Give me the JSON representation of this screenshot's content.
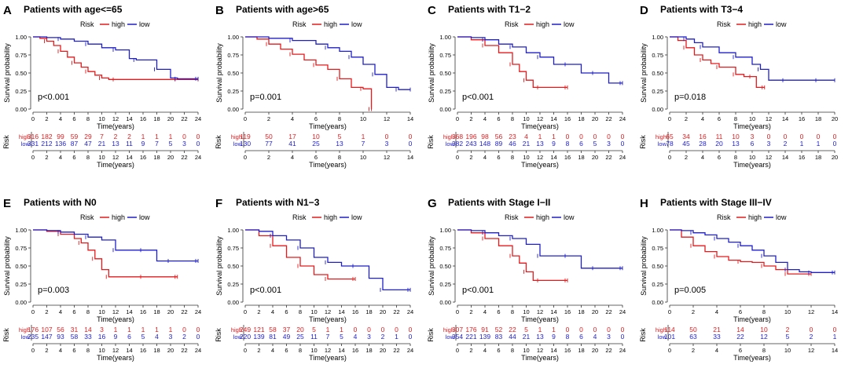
{
  "colors": {
    "high": "#e41a1c",
    "low": "#1f1fc8",
    "axis": "#333333"
  },
  "legend": {
    "title": "Risk",
    "high": "high",
    "low": "low"
  },
  "risk_label": "Risk",
  "chart_data": [
    {
      "id": "A",
      "type": "line",
      "title": "Patients with age<=65",
      "xlabel": "Time(years)",
      "ylabel": "Survival probability",
      "xlim": [
        0,
        24
      ],
      "xticks": [
        0,
        2,
        4,
        6,
        8,
        10,
        12,
        14,
        16,
        18,
        20,
        22,
        24
      ],
      "ylim": [
        0,
        1
      ],
      "yticks": [
        "0.00",
        "0.25",
        "0.50",
        "0.75",
        "1.00"
      ],
      "pvalue": "p<0.001",
      "series": [
        {
          "name": "high",
          "x": [
            0,
            1,
            2,
            3,
            4,
            5,
            6,
            7,
            8,
            9,
            10,
            11,
            12,
            20,
            21,
            24
          ],
          "y": [
            1,
            0.98,
            0.94,
            0.88,
            0.8,
            0.72,
            0.64,
            0.58,
            0.52,
            0.47,
            0.43,
            0.41,
            0.41,
            0.41,
            0.41,
            0.41
          ]
        },
        {
          "name": "low",
          "x": [
            0,
            2,
            4,
            6,
            8,
            10,
            12,
            14,
            15,
            17,
            18,
            20,
            21,
            22,
            24
          ],
          "y": [
            1,
            0.99,
            0.97,
            0.94,
            0.9,
            0.85,
            0.82,
            0.7,
            0.68,
            0.68,
            0.55,
            0.43,
            0.42,
            0.42,
            0.42
          ]
        }
      ],
      "risk_table": {
        "high": [
          "316",
          "182",
          "99",
          "59",
          "29",
          "7",
          "2",
          "2",
          "1",
          "1",
          "1",
          "0",
          "0"
        ],
        "low": [
          "331",
          "212",
          "136",
          "87",
          "47",
          "21",
          "13",
          "11",
          "9",
          "7",
          "5",
          "3",
          "0"
        ]
      }
    },
    {
      "id": "B",
      "type": "line",
      "title": "Patients with age>65",
      "xlabel": "Time(years)",
      "ylabel": "Survival probability",
      "xlim": [
        0,
        14
      ],
      "xticks": [
        0,
        2,
        4,
        6,
        8,
        10,
        12,
        14
      ],
      "ylim": [
        0,
        1
      ],
      "yticks": [
        "0.00",
        "0.25",
        "0.50",
        "0.75",
        "1.00"
      ],
      "pvalue": "p=0.001",
      "series": [
        {
          "name": "high",
          "x": [
            0,
            1,
            2,
            3,
            4,
            5,
            6,
            7,
            8,
            9,
            10,
            10.6,
            10.7
          ],
          "y": [
            1,
            0.97,
            0.9,
            0.83,
            0.76,
            0.68,
            0.61,
            0.55,
            0.42,
            0.3,
            0.28,
            0.28,
            0.0
          ]
        },
        {
          "name": "low",
          "x": [
            0,
            2,
            4,
            6,
            7,
            8,
            9,
            10,
            11,
            12,
            13,
            14
          ],
          "y": [
            1,
            0.98,
            0.95,
            0.9,
            0.85,
            0.8,
            0.72,
            0.62,
            0.48,
            0.3,
            0.27,
            0.27
          ]
        }
      ],
      "risk_table": {
        "high": [
          "119",
          "50",
          "17",
          "10",
          "5",
          "1",
          "0",
          "0"
        ],
        "low": [
          "130",
          "77",
          "41",
          "25",
          "13",
          "7",
          "3",
          "0"
        ]
      }
    },
    {
      "id": "C",
      "type": "line",
      "title": "Patients with T1−2",
      "xlabel": "Time(years)",
      "ylabel": "Survival probability",
      "xlim": [
        0,
        24
      ],
      "xticks": [
        0,
        2,
        4,
        6,
        8,
        10,
        12,
        14,
        16,
        18,
        20,
        22,
        24
      ],
      "ylim": [
        0,
        1
      ],
      "yticks": [
        "0.00",
        "0.25",
        "0.50",
        "0.75",
        "1.00"
      ],
      "pvalue": "p<0.001",
      "series": [
        {
          "name": "high",
          "x": [
            0,
            2,
            4,
            6,
            8,
            9,
            10,
            11,
            12,
            14,
            16
          ],
          "y": [
            1,
            0.96,
            0.88,
            0.78,
            0.62,
            0.52,
            0.4,
            0.3,
            0.3,
            0.3,
            0.3
          ]
        },
        {
          "name": "low",
          "x": [
            0,
            2,
            4,
            6,
            8,
            10,
            12,
            14,
            16,
            18,
            20,
            22,
            24
          ],
          "y": [
            1,
            0.99,
            0.96,
            0.9,
            0.86,
            0.78,
            0.72,
            0.62,
            0.62,
            0.5,
            0.5,
            0.36,
            0.36
          ]
        }
      ],
      "risk_table": {
        "high": [
          "368",
          "196",
          "98",
          "56",
          "23",
          "4",
          "1",
          "1",
          "0",
          "0",
          "0",
          "0",
          "0"
        ],
        "low": [
          "382",
          "243",
          "148",
          "89",
          "46",
          "21",
          "13",
          "9",
          "8",
          "6",
          "5",
          "3",
          "0"
        ]
      }
    },
    {
      "id": "D",
      "type": "line",
      "title": "Patients with T3−4",
      "xlabel": "Time(years)",
      "ylabel": "Survival probability",
      "xlim": [
        0,
        20
      ],
      "xticks": [
        0,
        2,
        4,
        6,
        8,
        10,
        12,
        14,
        16,
        18,
        20
      ],
      "ylim": [
        0,
        1
      ],
      "yticks": [
        "0.00",
        "0.25",
        "0.50",
        "0.75",
        "1.00"
      ],
      "pvalue": "p=0.018",
      "series": [
        {
          "name": "high",
          "x": [
            0,
            1,
            2,
            3,
            4,
            5,
            6,
            7,
            8,
            9,
            10,
            10.5,
            11.5
          ],
          "y": [
            1,
            0.95,
            0.85,
            0.75,
            0.68,
            0.63,
            0.58,
            0.58,
            0.48,
            0.45,
            0.45,
            0.3,
            0.3
          ]
        },
        {
          "name": "low",
          "x": [
            0,
            1,
            2,
            3,
            4,
            6,
            8,
            10,
            11,
            12,
            14,
            16,
            18,
            20
          ],
          "y": [
            1,
            1,
            0.97,
            0.92,
            0.86,
            0.78,
            0.72,
            0.62,
            0.55,
            0.4,
            0.4,
            0.4,
            0.4,
            0.4
          ]
        }
      ],
      "risk_table": {
        "high": [
          "65",
          "34",
          "16",
          "11",
          "10",
          "3",
          "0",
          "0",
          "0",
          "0",
          "0"
        ],
        "low": [
          "78",
          "45",
          "28",
          "20",
          "13",
          "6",
          "3",
          "2",
          "1",
          "1",
          "0"
        ]
      }
    },
    {
      "id": "E",
      "type": "line",
      "title": "Patients with N0",
      "xlabel": "Time(years)",
      "ylabel": "Survival probability",
      "xlim": [
        0,
        24
      ],
      "xticks": [
        0,
        2,
        4,
        6,
        8,
        10,
        12,
        14,
        16,
        18,
        20,
        22,
        24
      ],
      "ylim": [
        0,
        1
      ],
      "yticks": [
        "0.00",
        "0.25",
        "0.50",
        "0.75",
        "1.00"
      ],
      "pvalue": "p=0.003",
      "series": [
        {
          "name": "high",
          "x": [
            0,
            2,
            4,
            6,
            7,
            8,
            9,
            10,
            11,
            12,
            16,
            18,
            21
          ],
          "y": [
            1,
            0.98,
            0.94,
            0.88,
            0.82,
            0.72,
            0.6,
            0.45,
            0.35,
            0.35,
            0.35,
            0.35,
            0.35
          ]
        },
        {
          "name": "low",
          "x": [
            0,
            2,
            4,
            6,
            8,
            10,
            12,
            14,
            16,
            18,
            20,
            22,
            24
          ],
          "y": [
            1,
            0.99,
            0.97,
            0.94,
            0.9,
            0.86,
            0.72,
            0.72,
            0.72,
            0.57,
            0.57,
            0.57,
            0.57
          ]
        }
      ],
      "risk_table": {
        "high": [
          "176",
          "107",
          "56",
          "31",
          "14",
          "3",
          "1",
          "1",
          "1",
          "1",
          "1",
          "0",
          "0"
        ],
        "low": [
          "235",
          "147",
          "93",
          "58",
          "33",
          "16",
          "9",
          "6",
          "5",
          "4",
          "3",
          "2",
          "0"
        ]
      }
    },
    {
      "id": "F",
      "type": "line",
      "title": "Patients with N1−3",
      "xlabel": "Time(years)",
      "ylabel": "Survival probability",
      "xlim": [
        0,
        24
      ],
      "xticks": [
        0,
        2,
        4,
        6,
        8,
        10,
        12,
        14,
        16,
        18,
        20,
        22,
        24
      ],
      "ylim": [
        0,
        1
      ],
      "yticks": [
        "0.00",
        "0.25",
        "0.50",
        "0.75",
        "1.00"
      ],
      "pvalue": "p<0.001",
      "series": [
        {
          "name": "high",
          "x": [
            0,
            2,
            4,
            6,
            8,
            10,
            12,
            14,
            16
          ],
          "y": [
            1,
            0.92,
            0.78,
            0.62,
            0.5,
            0.38,
            0.32,
            0.32,
            0.32
          ]
        },
        {
          "name": "low",
          "x": [
            0,
            2,
            4,
            6,
            8,
            10,
            12,
            14,
            16,
            18,
            20,
            22,
            24
          ],
          "y": [
            1,
            0.98,
            0.92,
            0.86,
            0.75,
            0.62,
            0.55,
            0.5,
            0.5,
            0.33,
            0.17,
            0.17,
            0.17
          ]
        }
      ],
      "risk_table": {
        "high": [
          "249",
          "121",
          "58",
          "37",
          "20",
          "5",
          "1",
          "1",
          "0",
          "0",
          "0",
          "0",
          "0"
        ],
        "low": [
          "220",
          "139",
          "81",
          "49",
          "25",
          "11",
          "7",
          "5",
          "4",
          "3",
          "2",
          "1",
          "0"
        ]
      }
    },
    {
      "id": "G",
      "type": "line",
      "title": "Patients with Stage I−II",
      "xlabel": "Time(years)",
      "ylabel": "Survival probability",
      "xlim": [
        0,
        24
      ],
      "xticks": [
        0,
        2,
        4,
        6,
        8,
        10,
        12,
        14,
        16,
        18,
        20,
        22,
        24
      ],
      "ylim": [
        0,
        1
      ],
      "yticks": [
        "0.00",
        "0.25",
        "0.50",
        "0.75",
        "1.00"
      ],
      "pvalue": "p<0.001",
      "series": [
        {
          "name": "high",
          "x": [
            0,
            2,
            4,
            6,
            8,
            9,
            10,
            11,
            12,
            14,
            16
          ],
          "y": [
            1,
            0.96,
            0.88,
            0.78,
            0.64,
            0.54,
            0.42,
            0.3,
            0.3,
            0.3,
            0.3
          ]
        },
        {
          "name": "low",
          "x": [
            0,
            2,
            4,
            6,
            8,
            10,
            12,
            14,
            16,
            18,
            20,
            22,
            24
          ],
          "y": [
            1,
            0.99,
            0.96,
            0.92,
            0.88,
            0.8,
            0.64,
            0.64,
            0.64,
            0.47,
            0.47,
            0.47,
            0.47
          ]
        }
      ],
      "risk_table": {
        "high": [
          "307",
          "176",
          "91",
          "52",
          "22",
          "5",
          "1",
          "1",
          "0",
          "0",
          "0",
          "0",
          "0"
        ],
        "low": [
          "354",
          "221",
          "139",
          "83",
          "44",
          "21",
          "13",
          "9",
          "8",
          "6",
          "4",
          "3",
          "0"
        ]
      }
    },
    {
      "id": "H",
      "type": "line",
      "title": "Patients with Stage III−IV",
      "xlabel": "Time(years)",
      "ylabel": "Survival probability",
      "xlim": [
        0,
        14
      ],
      "xticks": [
        0,
        2,
        4,
        6,
        8,
        10,
        12,
        14
      ],
      "ylim": [
        0,
        1
      ],
      "yticks": [
        "0.00",
        "0.25",
        "0.50",
        "0.75",
        "1.00"
      ],
      "pvalue": "p=0.005",
      "series": [
        {
          "name": "high",
          "x": [
            0,
            1,
            2,
            3,
            4,
            5,
            6,
            7,
            8,
            9,
            10,
            11,
            12
          ],
          "y": [
            1,
            0.9,
            0.78,
            0.7,
            0.63,
            0.58,
            0.56,
            0.55,
            0.5,
            0.45,
            0.39,
            0.39,
            0.39
          ]
        },
        {
          "name": "low",
          "x": [
            0,
            1,
            2,
            3,
            4,
            5,
            6,
            7,
            8,
            9,
            10,
            11,
            12,
            13,
            14
          ],
          "y": [
            1,
            0.99,
            0.96,
            0.93,
            0.88,
            0.83,
            0.78,
            0.72,
            0.64,
            0.55,
            0.45,
            0.42,
            0.41,
            0.41,
            0.41
          ]
        }
      ],
      "risk_table": {
        "high": [
          "114",
          "50",
          "21",
          "14",
          "10",
          "2",
          "0",
          "0"
        ],
        "low": [
          "101",
          "63",
          "33",
          "22",
          "12",
          "5",
          "2",
          "1"
        ]
      }
    }
  ]
}
